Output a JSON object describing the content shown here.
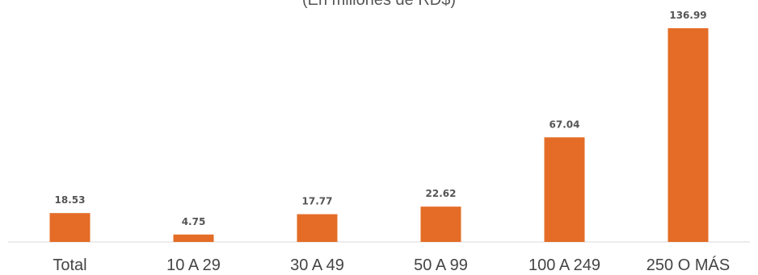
{
  "chart_data": {
    "type": "bar",
    "title": "",
    "subtitle": "(En millones de RD$)",
    "xlabel": "",
    "ylabel": "",
    "categories": [
      "Total",
      "10 A 29",
      "30 A 49",
      "50 A 99",
      "100 A 249",
      "250 O MÁS"
    ],
    "values": [
      18.53,
      4.75,
      17.77,
      22.62,
      67.04,
      136.99
    ],
    "value_labels": [
      "18.53",
      "4.75",
      "17.77",
      "22.62",
      "67.04",
      "136.99"
    ],
    "ylim": [
      0,
      136.99
    ],
    "grid": false,
    "legend": "none",
    "bar_color": "#E46C26",
    "axis_color": "#D9D9D9"
  }
}
